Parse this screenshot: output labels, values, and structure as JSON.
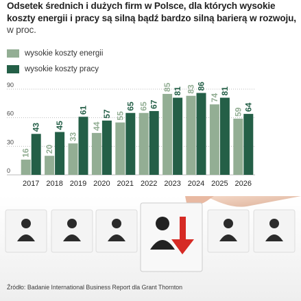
{
  "title": "Odsetek średnich i dużych firm w Polsce, dla których wysokie koszty energii i pracy są silną bądź bardzo silną barierą w rozwoju,",
  "title_unit": " w proc.",
  "source": "Źródło: Badanie International Business Report dla Grant Thornton",
  "colors": {
    "energy": "#93ae94",
    "labor": "#245f47",
    "grid": "#bbbbbb",
    "text": "#222222"
  },
  "chart_data": {
    "type": "bar",
    "categories": [
      "2017",
      "2018",
      "2019",
      "2020",
      "2021",
      "2022",
      "2023",
      "2024",
      "2025",
      "2026"
    ],
    "series": [
      {
        "name": "wysokie koszty energii",
        "values": [
          16,
          20,
          33,
          44,
          55,
          65,
          85,
          83,
          74,
          59
        ]
      },
      {
        "name": "wysokie koszty pracy",
        "values": [
          43,
          45,
          61,
          57,
          65,
          67,
          81,
          86,
          81,
          64
        ]
      }
    ],
    "yticks": [
      0,
      30,
      60,
      90
    ],
    "ylim": [
      0,
      90
    ],
    "grid": true,
    "legend": "top-left"
  }
}
